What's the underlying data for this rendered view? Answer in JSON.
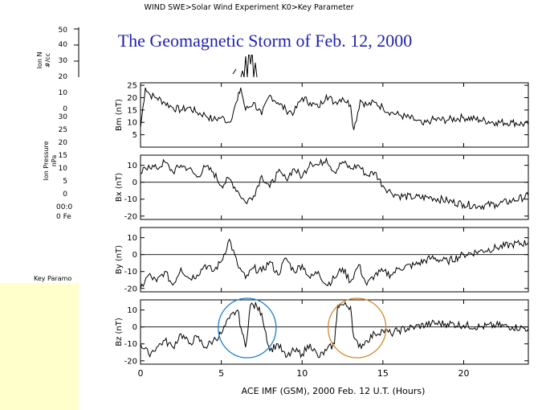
{
  "header": {
    "instrument_line": "WIND  SWE>Solar Wind Experiment  K0>Key Parameter",
    "title": "The Geomagnetic Storm of Feb. 12, 2000"
  },
  "background_plot": {
    "panel1_ylabel": "Ion N\n#/cc",
    "panel1_ticks": [
      "50",
      "40",
      "30",
      "20",
      "10",
      "0"
    ],
    "panel2_ylabel": "Ion Pressure\nnPa",
    "panel2_ticks": [
      "30",
      "25",
      "20",
      "15",
      "10",
      "5",
      "0"
    ],
    "time_fragment": "00:0",
    "axis_fragment": "0 Fe",
    "footer_fragment": "Key Paramo"
  },
  "chart_data": {
    "type": "line",
    "title": "ACE IMF (GSM), 2000 Feb. 12 U.T. (Hours)",
    "xlabel": "ACE IMF (GSM), 2000 Feb. 12 U.T. (Hours)",
    "xlim": [
      0,
      24
    ],
    "x_ticks": [
      0,
      5,
      10,
      15,
      20
    ],
    "panels": [
      {
        "name": "Bm",
        "ylabel": "Bm (nT)",
        "ylim": [
          0,
          26
        ],
        "y_ticks": [
          5,
          10,
          15,
          20,
          25
        ],
        "zero_line": false,
        "x": [
          0,
          0.3,
          0.6,
          1,
          1.5,
          2,
          2.5,
          3,
          3.5,
          4,
          4.5,
          5,
          5.5,
          6,
          6.2,
          6.5,
          7,
          7.5,
          8,
          8.5,
          9,
          9.5,
          10,
          10.5,
          11,
          11.5,
          12,
          12.5,
          13,
          13.2,
          13.6,
          14,
          14.5,
          15,
          15.5,
          16,
          17,
          17.5,
          18,
          19,
          20,
          21,
          22,
          23,
          24
        ],
        "values": [
          8,
          24,
          21,
          20,
          18,
          16,
          15,
          16,
          14,
          13,
          11,
          12,
          10,
          19,
          24,
          15,
          18,
          13,
          21,
          18,
          15,
          14,
          20,
          18,
          16,
          21,
          18,
          20,
          17,
          7,
          19,
          17,
          18,
          16,
          14,
          13,
          11,
          9,
          11,
          11,
          12,
          11,
          10,
          10,
          9
        ]
      },
      {
        "name": "Bx",
        "ylabel": "Bx (nT)",
        "ylim": [
          -22,
          16
        ],
        "y_ticks": [
          -20,
          -10,
          0,
          10
        ],
        "zero_line": true,
        "x": [
          0,
          0.5,
          1,
          1.5,
          2,
          2.5,
          3,
          3.5,
          4,
          4.5,
          5,
          5.5,
          6,
          6.5,
          7,
          7.5,
          8,
          8.5,
          9,
          9.5,
          10,
          10.5,
          11,
          11.5,
          12,
          12.5,
          13,
          13.5,
          14,
          14.5,
          15,
          15.5,
          16,
          17,
          18,
          19,
          20,
          21,
          22,
          23,
          24
        ],
        "values": [
          5,
          10,
          8,
          12,
          6,
          10,
          8,
          3,
          9,
          6,
          -2,
          2,
          -5,
          -12,
          -8,
          4,
          -3,
          6,
          2,
          8,
          3,
          12,
          10,
          14,
          6,
          12,
          8,
          10,
          4,
          6,
          -2,
          -6,
          -8,
          -9,
          -9,
          -11,
          -13,
          -14,
          -13,
          -11,
          -8
        ]
      },
      {
        "name": "By",
        "ylabel": "By (nT)",
        "ylim": [
          -22,
          16
        ],
        "y_ticks": [
          -20,
          -10,
          0,
          10
        ],
        "zero_line": true,
        "x": [
          0,
          0.5,
          1,
          1.5,
          2,
          2.5,
          3,
          3.5,
          4,
          4.5,
          5,
          5.5,
          6,
          6.5,
          7,
          7.5,
          8,
          8.5,
          9,
          9.5,
          10,
          10.5,
          11,
          11.5,
          12,
          12.5,
          13,
          13.5,
          14,
          14.5,
          15,
          15.5,
          16,
          17,
          18,
          19,
          20,
          21,
          22,
          23,
          24
        ],
        "values": [
          -20,
          -12,
          -16,
          -10,
          -18,
          -8,
          -14,
          -12,
          -6,
          -10,
          -4,
          9,
          -6,
          -14,
          -8,
          -10,
          -4,
          -12,
          -2,
          -10,
          -6,
          -14,
          -10,
          -18,
          -14,
          -8,
          -16,
          -6,
          -18,
          -12,
          -10,
          -12,
          -8,
          -6,
          -2,
          -4,
          0,
          2,
          4,
          6,
          7
        ]
      },
      {
        "name": "Bz",
        "ylabel": "Bz (nT)",
        "ylim": [
          -22,
          16
        ],
        "y_ticks": [
          -20,
          -10,
          0,
          10
        ],
        "zero_line": true,
        "x": [
          0,
          0.5,
          1,
          1.5,
          2,
          2.5,
          3,
          3.5,
          4,
          4.5,
          5,
          5.5,
          6,
          6.3,
          6.5,
          6.8,
          7.2,
          7.5,
          8,
          8.5,
          9,
          9.5,
          10,
          10.5,
          11,
          11.5,
          12,
          12.2,
          12.5,
          13,
          13.2,
          13.5,
          14,
          14.5,
          15,
          15.5,
          16,
          17,
          18,
          19,
          20,
          21,
          22,
          23,
          24
        ],
        "values": [
          -10,
          -16,
          -12,
          -8,
          -12,
          -4,
          -10,
          -6,
          -12,
          -8,
          -4,
          5,
          10,
          -4,
          -12,
          13,
          12,
          8,
          -14,
          -10,
          -18,
          -14,
          -16,
          -10,
          -18,
          -14,
          -10,
          13,
          13,
          12,
          -6,
          -12,
          -8,
          -4,
          -2,
          -4,
          -2,
          0,
          2,
          2,
          1,
          0,
          1,
          0,
          -1
        ]
      }
    ],
    "annotations": [
      {
        "type": "circle",
        "color": "#1a7fd0",
        "center_x": 6.6,
        "panel": "Bz"
      },
      {
        "type": "circle",
        "color": "#d08a2a",
        "center_x": 13.4,
        "panel": "Bz"
      }
    ]
  }
}
